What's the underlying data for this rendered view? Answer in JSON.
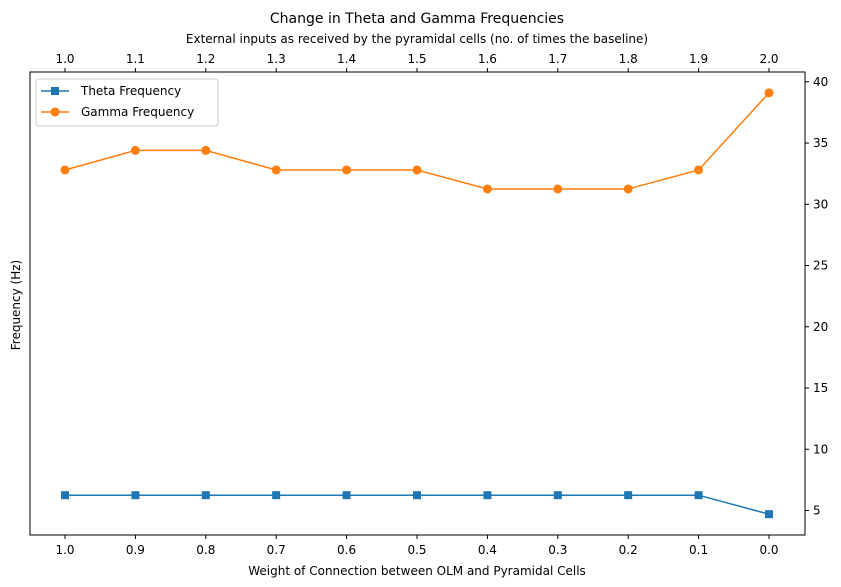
{
  "chart_data": {
    "type": "line",
    "title": "Change in Theta and Gamma Frequencies",
    "xlabel": "Weight of Connection between OLM and Pyramidal Cells",
    "x_top_label": "External inputs as received by the pyramidal cells (no. of times the baseline)",
    "ylabel": "Frequency (Hz)",
    "categories": [
      "1.0",
      "0.9",
      "0.8",
      "0.7",
      "0.6",
      "0.5",
      "0.4",
      "0.3",
      "0.2",
      "0.1",
      "0.0"
    ],
    "top_categories": [
      "1.0",
      "1.1",
      "1.2",
      "1.3",
      "1.4",
      "1.5",
      "1.6",
      "1.7",
      "1.8",
      "1.9",
      "2.0"
    ],
    "yticks": [
      "5",
      "10",
      "15",
      "20",
      "25",
      "30",
      "35",
      "40"
    ],
    "ylim": [
      3,
      40.8
    ],
    "y_tick_side": "right",
    "grid": false,
    "legend_position": "top-left",
    "series": [
      {
        "name": "Theta Frequency",
        "color": "#1f77b4",
        "marker": "square",
        "values": [
          6.25,
          6.25,
          6.25,
          6.25,
          6.25,
          6.25,
          6.25,
          6.25,
          6.25,
          6.25,
          4.7
        ]
      },
      {
        "name": "Gamma Frequency",
        "color": "#ff7f0e",
        "marker": "circle",
        "values": [
          32.8,
          34.4,
          34.4,
          32.8,
          32.8,
          32.8,
          31.25,
          31.25,
          31.25,
          32.8,
          39.1
        ]
      }
    ]
  }
}
